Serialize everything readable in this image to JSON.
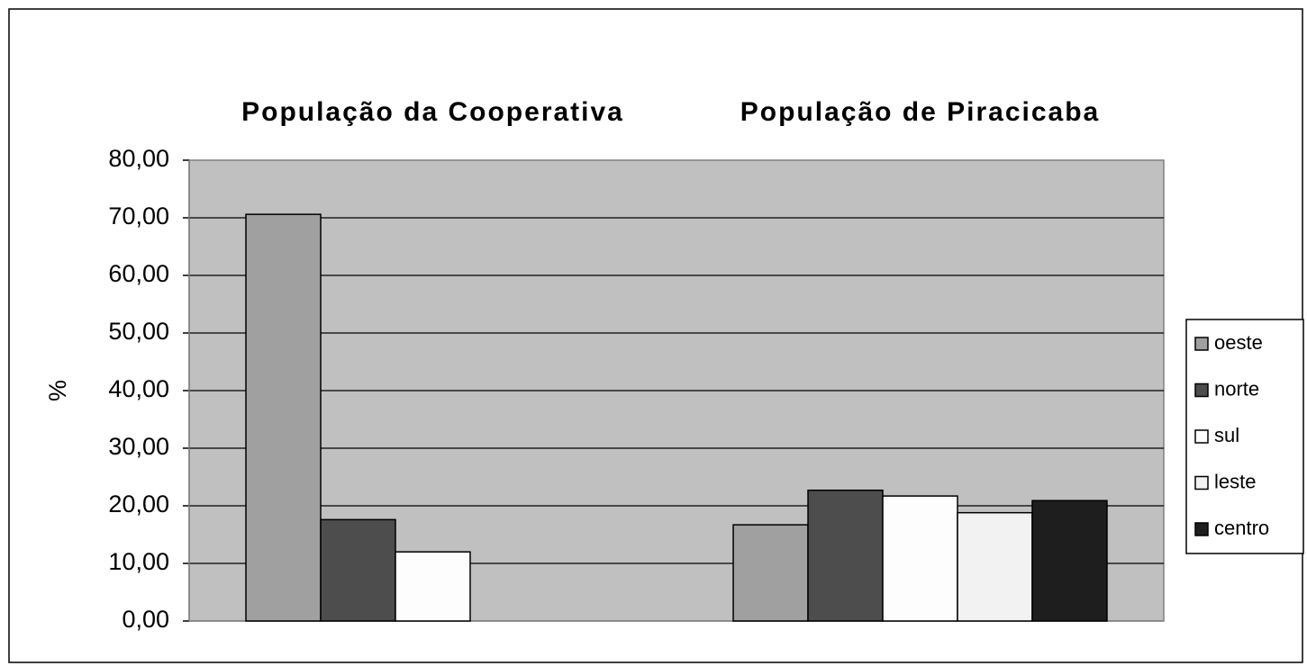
{
  "chart_data": {
    "type": "bar",
    "y_label": "%",
    "categories": [
      "População da Cooperativa",
      "População de Piracicaba"
    ],
    "series": [
      {
        "name": "oeste",
        "color": "#a0a0a0",
        "values": [
          70.6,
          16.7
        ]
      },
      {
        "name": "norte",
        "color": "#4d4d4d",
        "values": [
          17.6,
          22.7
        ]
      },
      {
        "name": "sul",
        "color": "#fdfdfd",
        "values": [
          12.0,
          21.7
        ]
      },
      {
        "name": "leste",
        "color": "#f2f2f2",
        "values": [
          null,
          18.8
        ]
      },
      {
        "name": "centro",
        "color": "#1e1e1e",
        "values": [
          null,
          20.9
        ]
      }
    ],
    "ylim": [
      0,
      80
    ],
    "yticks": [
      {
        "value": 0,
        "label": "0,00"
      },
      {
        "value": 10,
        "label": "10,00"
      },
      {
        "value": 20,
        "label": "20,00"
      },
      {
        "value": 30,
        "label": "30,00"
      },
      {
        "value": 40,
        "label": "40,00"
      },
      {
        "value": 50,
        "label": "50,00"
      },
      {
        "value": 60,
        "label": "60,00"
      },
      {
        "value": 70,
        "label": "70,00"
      },
      {
        "value": 80,
        "label": "80,00"
      }
    ],
    "grid": true,
    "legend": "right"
  }
}
